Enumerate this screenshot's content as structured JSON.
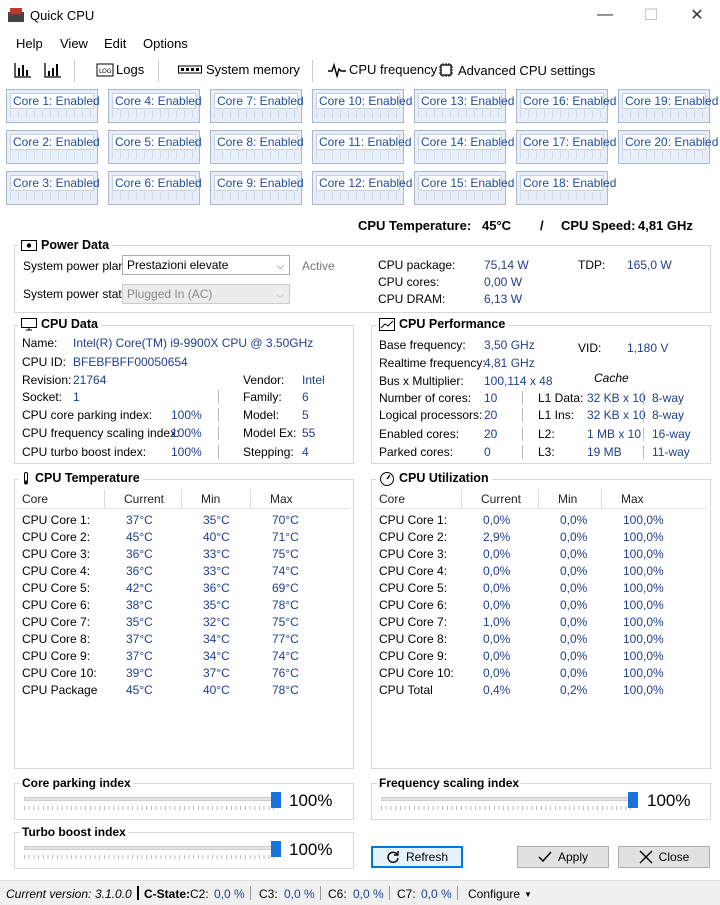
{
  "window": {
    "title": "Quick CPU",
    "minimize": "—",
    "maximize": "☐",
    "close": "✕"
  },
  "menu": [
    "Help",
    "View",
    "Edit",
    "Options"
  ],
  "toolbar": {
    "logs": "Logs",
    "system_memory": "System memory",
    "cpu_frequency": "CPU frequency",
    "advanced": "Advanced CPU settings"
  },
  "cores": [
    "Core 1: Enabled",
    "Core 2: Enabled",
    "Core 3: Enabled",
    "Core 4: Enabled",
    "Core 5: Enabled",
    "Core 6: Enabled",
    "Core 7: Enabled",
    "Core 8: Enabled",
    "Core 9: Enabled",
    "Core 10: Enabled",
    "Core 11: Enabled",
    "Core 12: Enabled",
    "Core 13: Enabled",
    "Core 14: Enabled",
    "Core 15: Enabled",
    "Core 16: Enabled",
    "Core 17: Enabled",
    "Core 18: Enabled",
    "Core 19: Enabled",
    "Core 20: Enabled"
  ],
  "summary": {
    "temp_label": "CPU Temperature:",
    "temp_value": "45°C",
    "slash": "/",
    "speed_label": "CPU Speed:",
    "speed_value": "4,81 GHz"
  },
  "power": {
    "title": "Power Data",
    "plan_label": "System power plan:",
    "plan_value": "Prestazioni elevate",
    "plan_status": "Active",
    "state_label": "System power state:",
    "state_value": "Plugged In (AC)",
    "package_label": "CPU package:",
    "package_value": "75,14 W",
    "cores_label": "CPU cores:",
    "cores_value": "0,00 W",
    "dram_label": "CPU DRAM:",
    "dram_value": "6,13 W",
    "tdp_label": "TDP:",
    "tdp_value": "165,0 W"
  },
  "cpu_data": {
    "title": "CPU Data",
    "name_label": "Name:",
    "name_value": "Intel(R) Core(TM) i9-9900X CPU @ 3.50GHz",
    "id_label": "CPU ID:",
    "id_value": "BFEBFBFF00050654",
    "revision_label": "Revision:",
    "revision_value": "21764",
    "vendor_label": "Vendor:",
    "vendor_value": "Intel",
    "socket_label": "Socket:",
    "socket_value": "1",
    "family_label": "Family:",
    "family_value": "6",
    "parking_label": "CPU core parking index:",
    "parking_value": "100%",
    "model_label": "Model:",
    "model_value": "5",
    "scaling_label": "CPU frequency scaling index:",
    "scaling_value": "100%",
    "modelex_label": "Model Ex:",
    "modelex_value": "55",
    "turbo_label": "CPU turbo boost index:",
    "turbo_value": "100%",
    "stepping_label": "Stepping:",
    "stepping_value": "4"
  },
  "cpu_perf": {
    "title": "CPU Performance",
    "base_label": "Base frequency:",
    "base_value": "3,50 GHz",
    "vid_label": "VID:",
    "vid_value": "1,180 V",
    "real_label": "Realtime frequency:",
    "real_value": "4,81 GHz",
    "cache_label": "Cache",
    "bus_label": "Bus x Multiplier:",
    "bus_value": "100,114 x 48",
    "num_label": "Number of cores:",
    "num_value": "10",
    "l1d_label": "L1 Data:",
    "l1d_value": "32 KB x 10",
    "l1d_way": "8-way",
    "log_label": "Logical processors:",
    "log_value": "20",
    "l1i_label": "L1 Ins:",
    "l1i_value": "32 KB x 10",
    "l1i_way": "8-way",
    "en_label": "Enabled cores:",
    "en_value": "20",
    "l2_label": "L2:",
    "l2_value": "1 MB x 10",
    "l2_way": "16-way",
    "park_label": "Parked cores:",
    "park_value": "0",
    "l3_label": "L3:",
    "l3_value": "19 MB",
    "l3_way": "11-way"
  },
  "temp_table": {
    "title": "CPU Temperature",
    "headers": [
      "Core",
      "Current",
      "Min",
      "Max"
    ],
    "rows": [
      [
        "CPU Core 1:",
        "37°C",
        "35°C",
        "70°C"
      ],
      [
        "CPU Core 2:",
        "45°C",
        "40°C",
        "71°C"
      ],
      [
        "CPU Core 3:",
        "36°C",
        "33°C",
        "75°C"
      ],
      [
        "CPU Core 4:",
        "36°C",
        "33°C",
        "74°C"
      ],
      [
        "CPU Core 5:",
        "42°C",
        "36°C",
        "69°C"
      ],
      [
        "CPU Core 6:",
        "38°C",
        "35°C",
        "78°C"
      ],
      [
        "CPU Core 7:",
        "35°C",
        "32°C",
        "75°C"
      ],
      [
        "CPU Core 8:",
        "37°C",
        "34°C",
        "77°C"
      ],
      [
        "CPU Core 9:",
        "37°C",
        "34°C",
        "74°C"
      ],
      [
        "CPU Core 10:",
        "39°C",
        "37°C",
        "76°C"
      ],
      [
        "CPU Package",
        "45°C",
        "40°C",
        "78°C"
      ]
    ]
  },
  "util_table": {
    "title": "CPU Utilization",
    "headers": [
      "Core",
      "Current",
      "Min",
      "Max"
    ],
    "rows": [
      [
        "CPU Core 1:",
        "0,0%",
        "0,0%",
        "100,0%"
      ],
      [
        "CPU Core 2:",
        "2,9%",
        "0,0%",
        "100,0%"
      ],
      [
        "CPU Core 3:",
        "0,0%",
        "0,0%",
        "100,0%"
      ],
      [
        "CPU Core 4:",
        "0,0%",
        "0,0%",
        "100,0%"
      ],
      [
        "CPU Core 5:",
        "0,0%",
        "0,0%",
        "100,0%"
      ],
      [
        "CPU Core 6:",
        "0,0%",
        "0,0%",
        "100,0%"
      ],
      [
        "CPU Core 7:",
        "1,0%",
        "0,0%",
        "100,0%"
      ],
      [
        "CPU Core 8:",
        "0,0%",
        "0,0%",
        "100,0%"
      ],
      [
        "CPU Core 9:",
        "0,0%",
        "0,0%",
        "100,0%"
      ],
      [
        "CPU Core 10:",
        "0,0%",
        "0,0%",
        "100,0%"
      ],
      [
        "CPU Total",
        "0,4%",
        "0,2%",
        "100,0%"
      ]
    ]
  },
  "sliders": {
    "parking": {
      "title": "Core parking index",
      "value": "100%",
      "level": 1.0
    },
    "scaling": {
      "title": "Frequency scaling index",
      "value": "100%",
      "level": 1.0
    },
    "turbo": {
      "title": "Turbo boost index",
      "value": "100%",
      "level": 1.0
    }
  },
  "buttons": {
    "refresh": "Refresh",
    "apply": "Apply",
    "close": "Close"
  },
  "status": {
    "version_label": "Current version:",
    "version_value": "3.1.0.0",
    "cstate_label": "C-State:",
    "c2_label": "C2:",
    "c2_value": "0,0 %",
    "c3_label": "C3:",
    "c3_value": "0,0 %",
    "c6_label": "C6:",
    "c6_value": "0,0 %",
    "c7_label": "C7:",
    "c7_value": "0,0 %",
    "configure": "Configure"
  },
  "colors": {
    "accent": "#1a73d9",
    "value_text": "#1f3f8f",
    "core_text": "#1f4fa0"
  }
}
